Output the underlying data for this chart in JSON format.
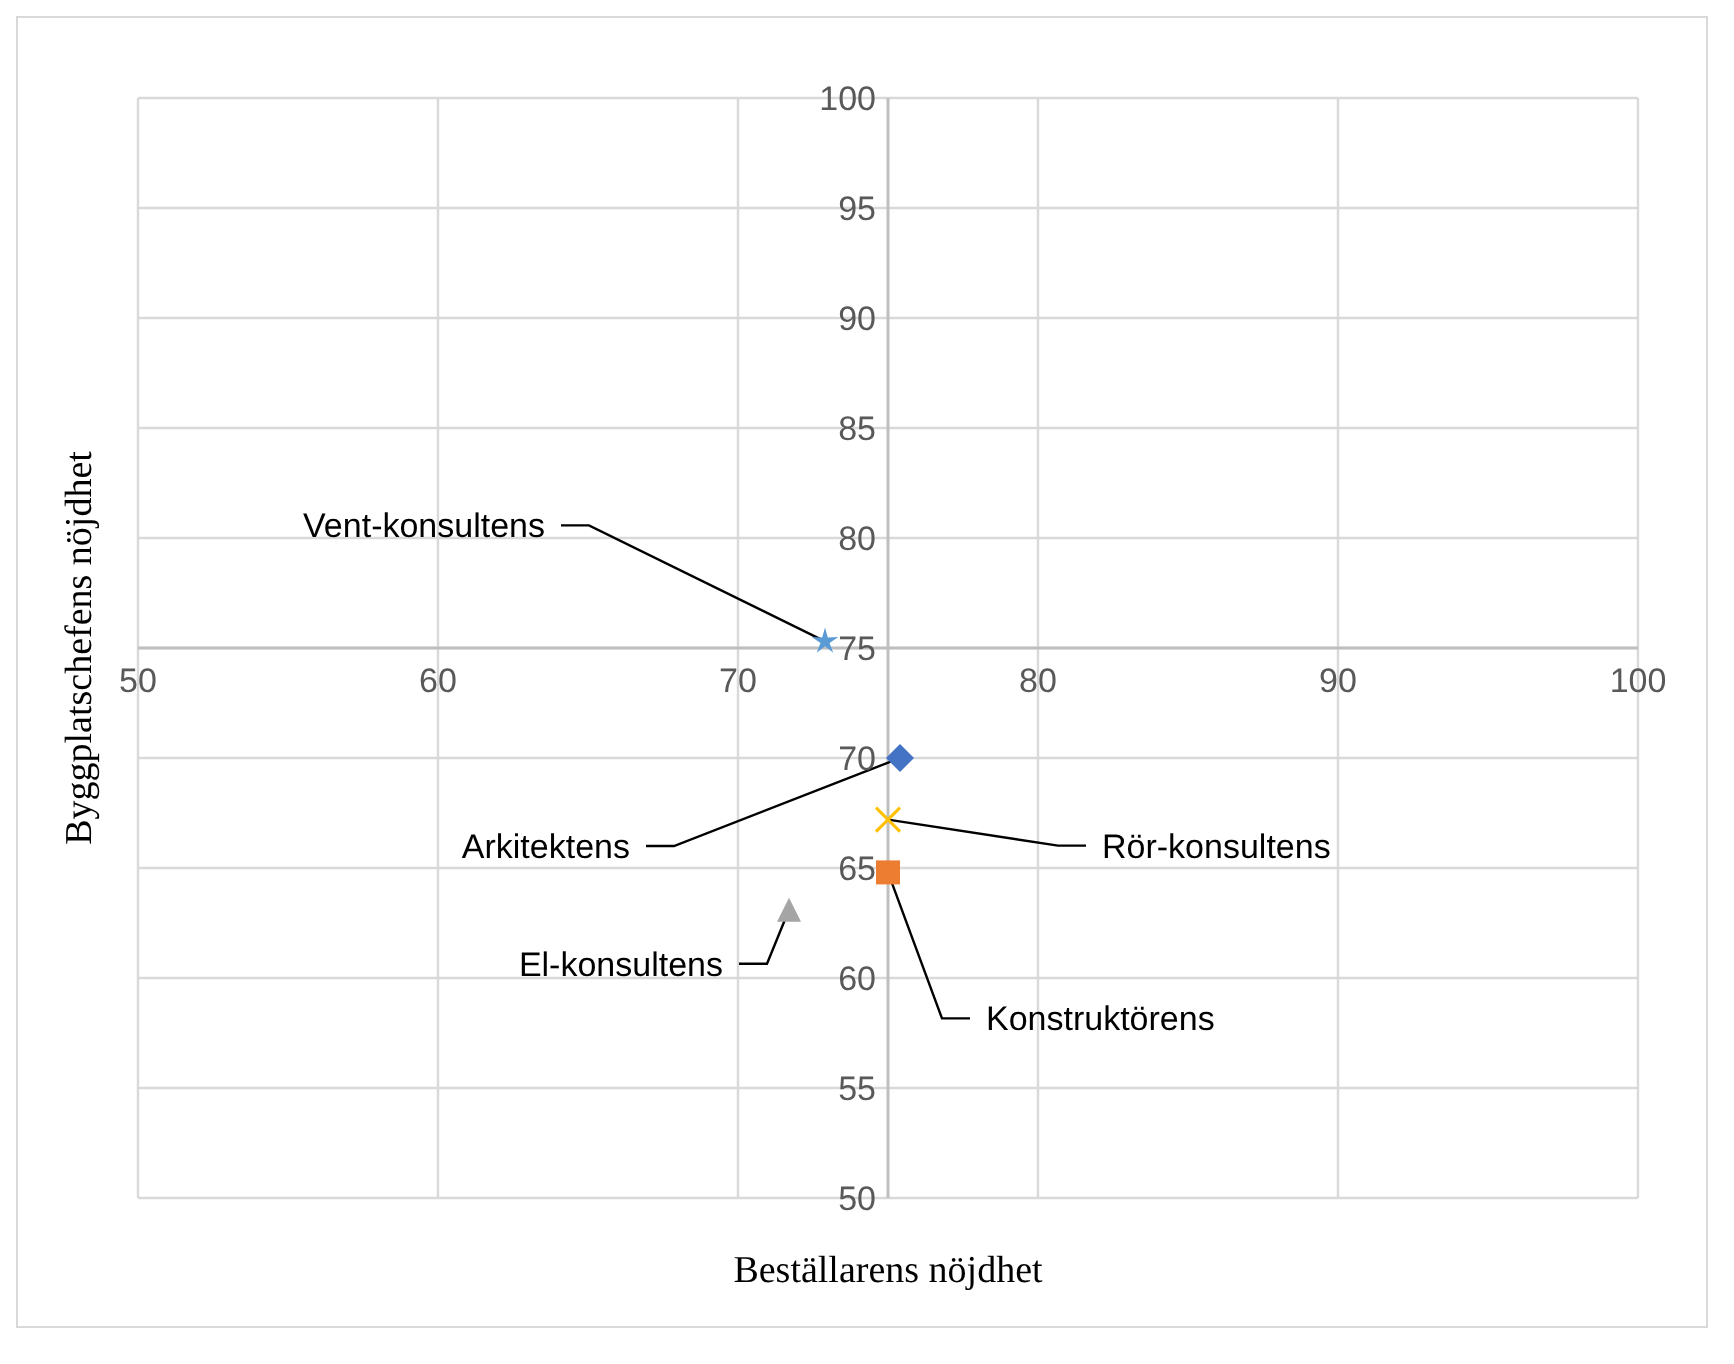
{
  "chart_data": {
    "type": "scatter",
    "xlabel": "Beställarens nöjdhet",
    "ylabel": "Byggplatschefens nöjdhet",
    "xlim": [
      50,
      100
    ],
    "xticks": [
      50,
      60,
      70,
      80,
      90,
      100
    ],
    "ylim": [
      50,
      100
    ],
    "yticks": [
      50,
      55,
      60,
      65,
      70,
      75,
      80,
      85,
      90,
      95,
      100
    ],
    "grid": true,
    "legend": false,
    "series": [
      {
        "name": "Vent-konsultens",
        "color": "#5b9bd5",
        "marker": "star",
        "x": [
          72.9
        ],
        "values": [
          75.3
        ]
      },
      {
        "name": "Arkitektens",
        "color": "#4472c4",
        "marker": "diamond",
        "x": [
          75.4
        ],
        "values": [
          70.0
        ]
      },
      {
        "name": "Rör-konsultens",
        "color": "#ffc000",
        "marker": "cross",
        "x": [
          75.0
        ],
        "values": [
          67.2
        ]
      },
      {
        "name": "Konstruktörens",
        "color": "#ed7d31",
        "marker": "square",
        "x": [
          75.0
        ],
        "values": [
          64.8
        ]
      },
      {
        "name": "El-konsultens",
        "color": "#a5a5a5",
        "marker": "triangle",
        "x": [
          71.7
        ],
        "values": [
          63.1
        ]
      }
    ]
  }
}
